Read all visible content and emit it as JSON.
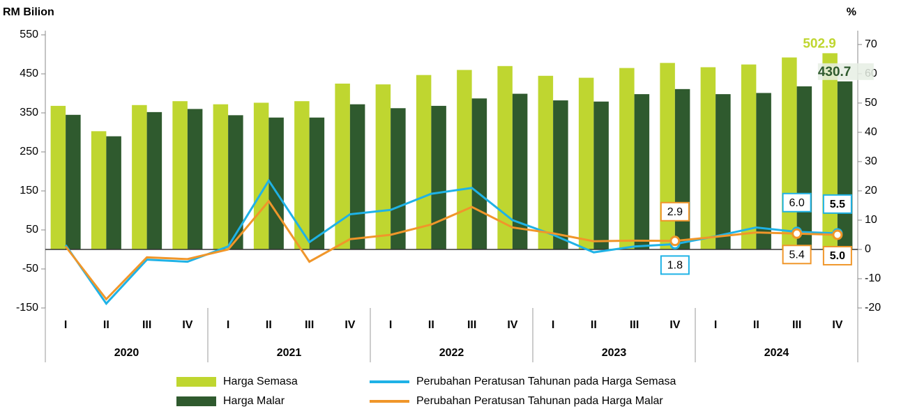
{
  "chart_data": {
    "type": "bar_line",
    "y_label": "RM Bilion",
    "y2_label": "%",
    "categories": [
      "I",
      "II",
      "III",
      "IV",
      "I",
      "II",
      "III",
      "IV",
      "I",
      "II",
      "III",
      "IV",
      "I",
      "II",
      "III",
      "IV",
      "I",
      "II",
      "III",
      "IV"
    ],
    "years": [
      "2020",
      "2021",
      "2022",
      "2023",
      "2024"
    ],
    "ylim": [
      -150,
      550
    ],
    "yticks": [
      -150,
      -50,
      50,
      150,
      250,
      350,
      450,
      550
    ],
    "y2lim": [
      -20,
      73.3
    ],
    "y2ticks": [
      -20,
      -10,
      0,
      10,
      20,
      30,
      40,
      50,
      60,
      70
    ],
    "series": [
      {
        "name": "Harga Semasa",
        "kind": "bar",
        "color": "#bfd630",
        "values": [
          368,
          303,
          370,
          380,
          372,
          376,
          380,
          425,
          423,
          447,
          460,
          470,
          445,
          440,
          465,
          478,
          467,
          474,
          492,
          502.9
        ],
        "value_labels": [
          null,
          null,
          null,
          null,
          null,
          null,
          null,
          null,
          null,
          null,
          null,
          null,
          null,
          null,
          null,
          null,
          null,
          null,
          null,
          "502.9"
        ]
      },
      {
        "name": "Harga Malar",
        "kind": "bar",
        "color": "#2f5a2e",
        "values": [
          345,
          290,
          352,
          360,
          344,
          338,
          338,
          372,
          362,
          368,
          387,
          399,
          382,
          379,
          398,
          411,
          398,
          401,
          418,
          430.7
        ],
        "value_labels": [
          null,
          null,
          null,
          null,
          null,
          null,
          null,
          null,
          null,
          null,
          null,
          null,
          null,
          null,
          null,
          null,
          null,
          null,
          null,
          "430.7"
        ]
      },
      {
        "name": "Perubahan Peratusan Tahunan pada Harga Semasa",
        "kind": "line",
        "axis": "y2",
        "color": "#1fb2e6",
        "values": [
          1.5,
          -18.5,
          -3.5,
          -4.2,
          1,
          23.5,
          2.5,
          12,
          13.5,
          19,
          21,
          10,
          5,
          -1,
          1,
          1.8,
          4.5,
          7.5,
          6.0,
          5.5
        ],
        "value_labels": [
          null,
          null,
          null,
          null,
          null,
          null,
          null,
          null,
          null,
          null,
          null,
          null,
          null,
          null,
          null,
          "1.8",
          null,
          null,
          "6.0",
          "5.5"
        ]
      },
      {
        "name": "Perubahan Peratusan Tahunan pada Harga Malar",
        "kind": "line",
        "axis": "y2",
        "color": "#f0962a",
        "values": [
          1.0,
          -17,
          -2.7,
          -3.3,
          0,
          16.5,
          -4.2,
          3.5,
          5,
          8.5,
          14.5,
          7.5,
          5.5,
          2.8,
          3,
          2.9,
          4.3,
          5.8,
          5.4,
          5.0
        ],
        "value_labels": [
          null,
          null,
          null,
          null,
          null,
          null,
          null,
          null,
          null,
          null,
          null,
          null,
          null,
          null,
          null,
          "2.9",
          null,
          null,
          "5.4",
          "5.0"
        ]
      }
    ]
  }
}
